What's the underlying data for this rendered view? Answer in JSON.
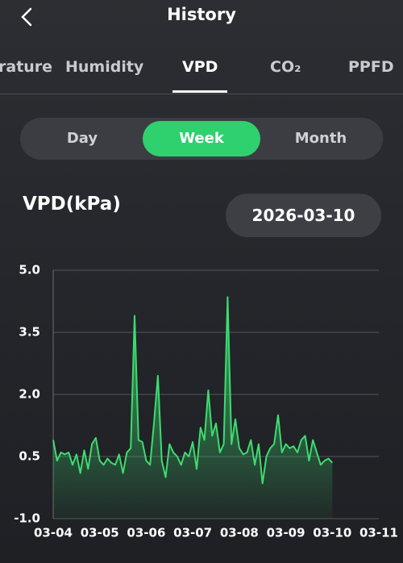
{
  "header": {
    "title": "History"
  },
  "tabs": [
    "rature",
    "Humidity",
    "VPD",
    "CO₂",
    "PPFD"
  ],
  "active_tab": 2,
  "range_options": [
    "Day",
    "Week",
    "Month"
  ],
  "active_range": 1,
  "date": "2026-03-10",
  "chart_data": {
    "type": "line",
    "title": "VPD(kPa)",
    "color": "#3ddc6f",
    "grid": true,
    "categories": [
      "03-04",
      null,
      null,
      null,
      null,
      null,
      null,
      null,
      null,
      null,
      null,
      null,
      "03-05",
      null,
      null,
      null,
      null,
      null,
      null,
      null,
      null,
      null,
      null,
      null,
      "03-06",
      null,
      null,
      null,
      null,
      null,
      null,
      null,
      null,
      null,
      null,
      null,
      "03-07",
      null,
      null,
      null,
      null,
      null,
      null,
      null,
      null,
      null,
      null,
      null,
      "03-08",
      null,
      null,
      null,
      null,
      null,
      null,
      null,
      null,
      null,
      null,
      null,
      "03-09",
      null,
      null,
      null,
      null,
      null,
      null,
      null,
      null,
      null,
      null,
      null,
      "03-10",
      null,
      null,
      null,
      null,
      null,
      null,
      null,
      null,
      null,
      null,
      null,
      "03-11"
    ],
    "values": [
      0.9,
      0.4,
      0.6,
      0.55,
      0.6,
      0.3,
      0.55,
      0.1,
      0.65,
      0.2,
      0.8,
      0.95,
      0.4,
      0.3,
      0.45,
      0.35,
      0.3,
      0.55,
      0.1,
      0.6,
      0.7,
      3.9,
      0.9,
      0.85,
      0.4,
      0.3,
      1.3,
      2.45,
      0.4,
      0.0,
      0.8,
      0.6,
      0.5,
      0.3,
      0.6,
      0.5,
      0.85,
      0.2,
      1.2,
      0.9,
      2.1,
      1.0,
      1.3,
      0.6,
      0.8,
      4.35,
      0.8,
      1.4,
      0.7,
      0.55,
      0.6,
      0.9,
      0.3,
      0.8,
      -0.15,
      0.5,
      0.7,
      0.8,
      1.5,
      0.6,
      0.8,
      0.7,
      0.75,
      0.6,
      0.9,
      1.0,
      0.4,
      0.9,
      0.6,
      0.3,
      0.4,
      0.45,
      0.35,
      null,
      null,
      null,
      null,
      null,
      null,
      null,
      null,
      null,
      null,
      null,
      null
    ],
    "ylim": [
      -1.0,
      5.0
    ],
    "yticks": [
      {
        "value": 5.0,
        "label": "5.0"
      },
      {
        "value": 3.5,
        "label": "3.5"
      },
      {
        "value": 2.0,
        "label": "2.0"
      },
      {
        "value": 0.5,
        "label": "0.5"
      },
      {
        "value": -1.0,
        "label": "-1.0"
      }
    ]
  }
}
